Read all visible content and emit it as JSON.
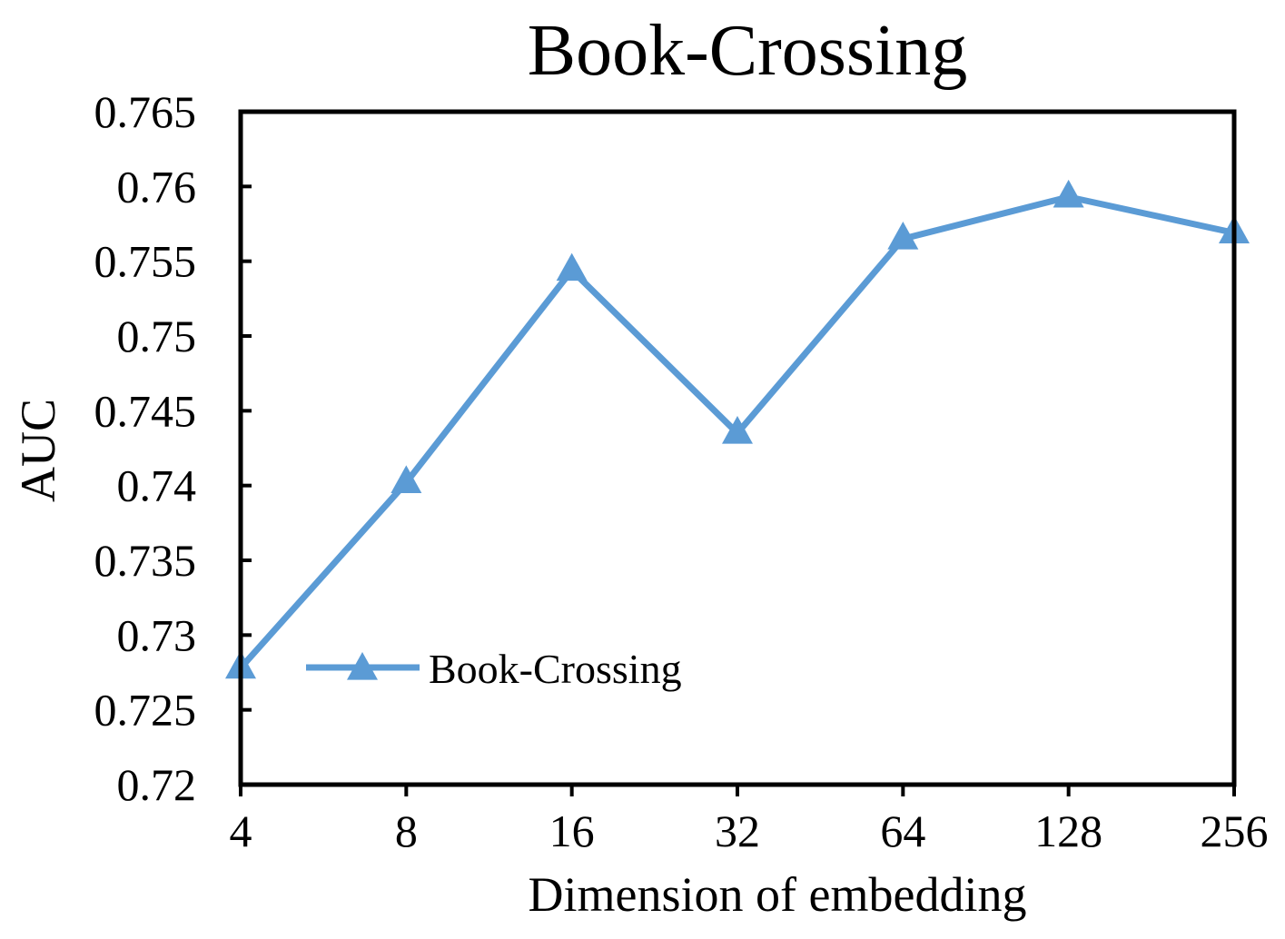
{
  "chart_data": {
    "type": "line",
    "title": "Book-Crossing",
    "xlabel": "Dimension of embedding",
    "ylabel": "AUC",
    "categories": [
      "4",
      "8",
      "16",
      "32",
      "64",
      "128",
      "256"
    ],
    "series": [
      {
        "name": "Book-Crossing",
        "values": [
          0.7278,
          0.7402,
          0.7544,
          0.7435,
          0.7565,
          0.7593,
          0.7569
        ],
        "color": "#5B9BD5",
        "marker": "triangle"
      }
    ],
    "ylim": [
      0.72,
      0.765
    ],
    "yticks": [
      "0.72",
      "0.725",
      "0.73",
      "0.735",
      "0.74",
      "0.745",
      "0.75",
      "0.755",
      "0.76",
      "0.765"
    ],
    "grid": false,
    "legend_position": "inside-lower-left"
  }
}
